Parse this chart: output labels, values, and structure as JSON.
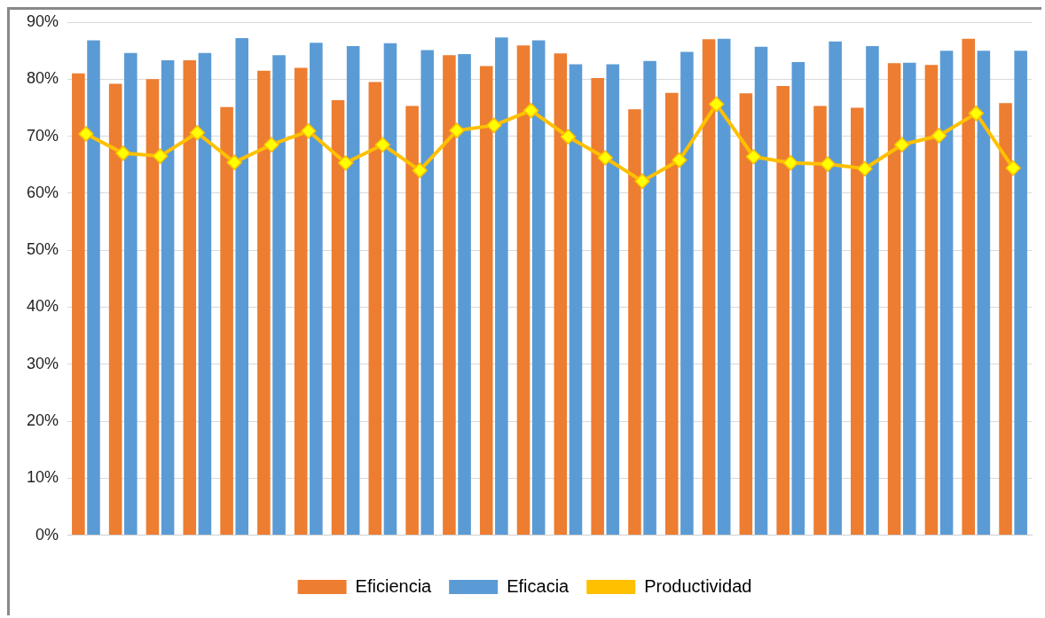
{
  "chart_data": {
    "type": "bar",
    "categories": [
      null,
      null,
      null,
      null,
      null,
      null,
      null,
      null,
      null,
      null,
      null,
      null,
      null,
      null,
      null,
      null,
      null,
      null,
      null,
      null,
      null,
      null,
      null,
      null,
      null,
      null
    ],
    "series": [
      {
        "name": "Eficiencia",
        "color": "#ed7d31",
        "values": [
          81.0,
          79.2,
          80.0,
          83.3,
          75.1,
          81.5,
          82.0,
          76.3,
          79.5,
          75.3,
          84.2,
          82.3,
          85.9,
          84.5,
          80.2,
          74.7,
          77.6,
          87.0,
          77.5,
          78.8,
          75.3,
          75.0,
          82.8,
          82.5,
          87.1,
          75.8
        ]
      },
      {
        "name": "Eficacia",
        "color": "#5b9bd5",
        "values": [
          86.8,
          84.6,
          83.3,
          84.6,
          87.2,
          84.2,
          86.4,
          85.8,
          86.3,
          85.1,
          84.4,
          87.3,
          86.8,
          82.6,
          82.6,
          83.2,
          84.8,
          87.1,
          85.7,
          83.0,
          86.6,
          85.8,
          82.9,
          85.0,
          85.0,
          85.0
        ]
      },
      {
        "name": "Productividad",
        "type": "line",
        "color": "#ffc000",
        "values": [
          70.4,
          67.0,
          66.5,
          70.6,
          65.4,
          68.5,
          70.9,
          65.3,
          68.5,
          64.0,
          71.0,
          71.9,
          74.5,
          69.9,
          66.2,
          62.1,
          65.8,
          75.6,
          66.4,
          65.3,
          65.1,
          64.3,
          68.5,
          70.1,
          74.0,
          64.4
        ]
      }
    ],
    "ylim": [
      0,
      90
    ],
    "yticks": [
      {
        "value": 0,
        "label": "0%"
      },
      {
        "value": 10,
        "label": "10%"
      },
      {
        "value": 20,
        "label": "20%"
      },
      {
        "value": 30,
        "label": "30%"
      },
      {
        "value": 40,
        "label": "40%"
      },
      {
        "value": 50,
        "label": "50%"
      },
      {
        "value": 60,
        "label": "60%"
      },
      {
        "value": 70,
        "label": "70%"
      },
      {
        "value": 80,
        "label": "80%"
      },
      {
        "value": 90,
        "label": "90%"
      }
    ],
    "grid": "y",
    "legend": "bottom",
    "marker": "diamond",
    "line_style": "solid"
  }
}
